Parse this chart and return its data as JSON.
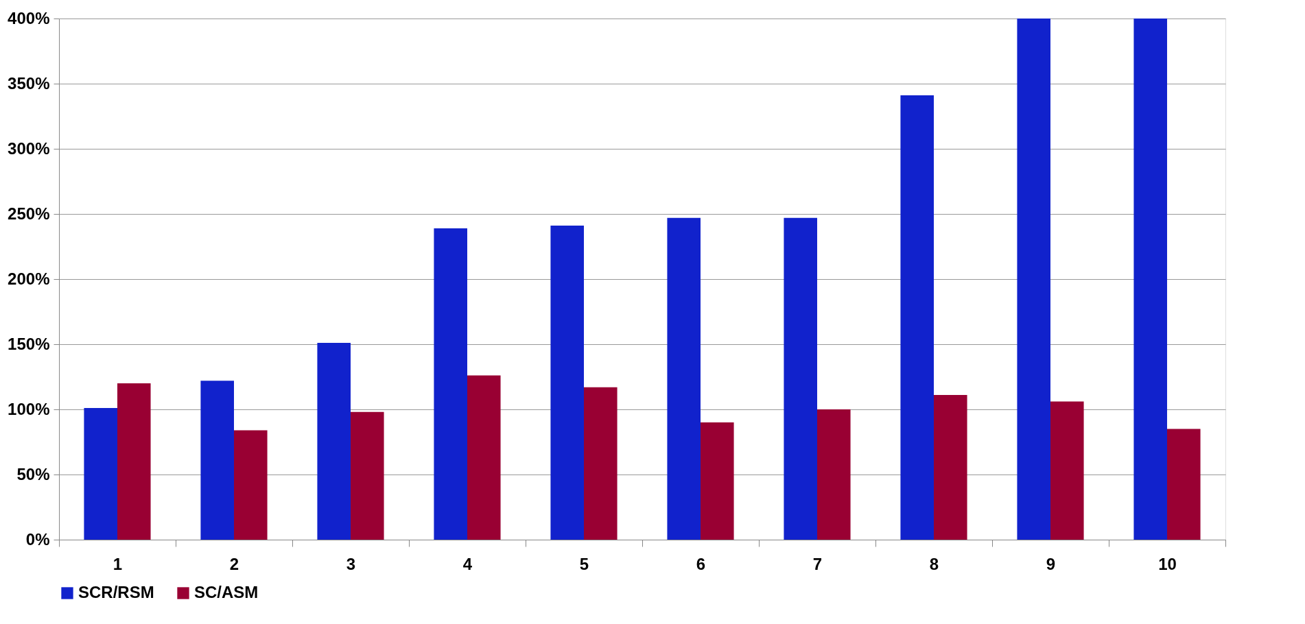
{
  "chart_data": {
    "type": "bar",
    "categories": [
      "1",
      "2",
      "3",
      "4",
      "5",
      "6",
      "7",
      "8",
      "9",
      "10"
    ],
    "series": [
      {
        "name": "SCR/RSM",
        "color": "#1122cc",
        "values": [
          101,
          122,
          151,
          239,
          241,
          247,
          247,
          341,
          400,
          400
        ]
      },
      {
        "name": "SC/ASM",
        "color": "#990033",
        "values": [
          120,
          84,
          98,
          126,
          117,
          90,
          100,
          111,
          106,
          85
        ]
      }
    ],
    "ylim": [
      0,
      400
    ],
    "yticks": [
      {
        "value": 0,
        "label": "0%"
      },
      {
        "value": 50,
        "label": "50%"
      },
      {
        "value": 100,
        "label": "100%"
      },
      {
        "value": 150,
        "label": "150%"
      },
      {
        "value": 200,
        "label": "200%"
      },
      {
        "value": 250,
        "label": "250%"
      },
      {
        "value": 300,
        "label": "300%"
      },
      {
        "value": 350,
        "label": "350%"
      },
      {
        "value": 400,
        "label": "400%"
      }
    ],
    "grid": "y",
    "legend": "bottom"
  }
}
